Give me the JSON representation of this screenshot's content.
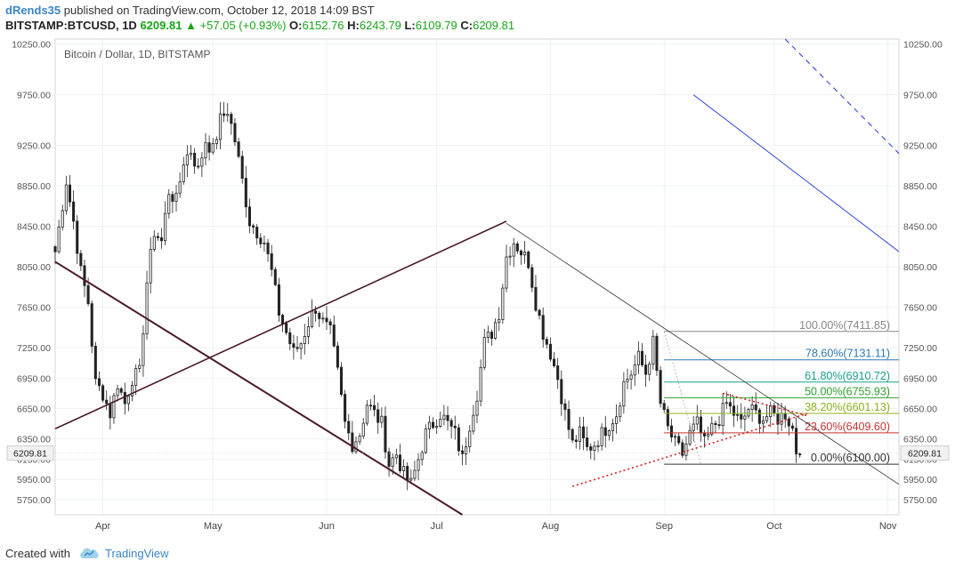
{
  "header": {
    "author": "dRends35",
    "published_text": " published on TradingView.com, October 12, 2018 14:09 BST",
    "symbol": "BITSTAMP:BTCUSD, 1D",
    "price": "6209.81",
    "change": "+57.05 (+0.93%)",
    "o_label": "O:",
    "o_value": "6152.76",
    "h_label": "H:",
    "h_value": "6243.79",
    "l_label": "L:",
    "l_value": "6109.79",
    "c_label": "C:",
    "c_value": "6209.81"
  },
  "footer": {
    "created_with": "Created with",
    "brand": "TradingView"
  },
  "colors": {
    "up": "#19a519",
    "accent": "#3a84c4",
    "trend": "#4a1a2a",
    "fib_red": "#c83232",
    "channel": "#1f35d6"
  },
  "chart_data": {
    "type": "candlestick",
    "title": "Bitcoin / Dollar, 1D, BITSTAMP",
    "ylim": [
      5600,
      10300
    ],
    "xlim": [
      -5,
      225
    ],
    "y_ticks": [
      "10250.00",
      "9750.00",
      "9250.00",
      "8850.00",
      "8450.00",
      "8050.00",
      "7650.00",
      "7250.00",
      "6950.00",
      "6650.00",
      "6350.00",
      "6150.00",
      "5950.00",
      "5750.00"
    ],
    "x_ticks": [
      {
        "label": "Apr",
        "x": 8
      },
      {
        "label": "May",
        "x": 38
      },
      {
        "label": "Jun",
        "x": 69
      },
      {
        "label": "Jul",
        "x": 99
      },
      {
        "label": "Aug",
        "x": 130
      },
      {
        "label": "Sep",
        "x": 161
      },
      {
        "label": "Oct",
        "x": 191
      },
      {
        "label": "Nov",
        "x": 222
      }
    ],
    "last_price": {
      "label": "6209.81",
      "value": 6209.81
    },
    "anchors": [
      [
        -5,
        8200
      ],
      [
        -2,
        8900
      ],
      [
        0,
        8500
      ],
      [
        2,
        8000
      ],
      [
        4,
        7700
      ],
      [
        6,
        6900
      ],
      [
        8,
        6800
      ],
      [
        10,
        6600
      ],
      [
        12,
        6900
      ],
      [
        14,
        6700
      ],
      [
        16,
        6950
      ],
      [
        18,
        7000
      ],
      [
        20,
        7900
      ],
      [
        22,
        8400
      ],
      [
        24,
        8300
      ],
      [
        26,
        8800
      ],
      [
        28,
        8700
      ],
      [
        30,
        9100
      ],
      [
        32,
        9200
      ],
      [
        34,
        9000
      ],
      [
        36,
        9300
      ],
      [
        38,
        9200
      ],
      [
        40,
        9500
      ],
      [
        42,
        9600
      ],
      [
        44,
        9300
      ],
      [
        46,
        8900
      ],
      [
        48,
        8500
      ],
      [
        50,
        8400
      ],
      [
        52,
        8300
      ],
      [
        54,
        8000
      ],
      [
        56,
        7600
      ],
      [
        58,
        7400
      ],
      [
        60,
        7200
      ],
      [
        62,
        7300
      ],
      [
        64,
        7500
      ],
      [
        66,
        7650
      ],
      [
        68,
        7500
      ],
      [
        70,
        7400
      ],
      [
        72,
        7000
      ],
      [
        74,
        6500
      ],
      [
        76,
        6300
      ],
      [
        78,
        6400
      ],
      [
        80,
        6700
      ],
      [
        82,
        6600
      ],
      [
        84,
        6500
      ],
      [
        86,
        6100
      ],
      [
        88,
        6200
      ],
      [
        90,
        6000
      ],
      [
        92,
        5900
      ],
      [
        94,
        6150
      ],
      [
        96,
        6400
      ],
      [
        98,
        6500
      ],
      [
        100,
        6600
      ],
      [
        102,
        6500
      ],
      [
        104,
        6400
      ],
      [
        106,
        6150
      ],
      [
        108,
        6500
      ],
      [
        110,
        6800
      ],
      [
        112,
        7300
      ],
      [
        114,
        7400
      ],
      [
        116,
        7600
      ],
      [
        118,
        8150
      ],
      [
        120,
        8300
      ],
      [
        122,
        8200
      ],
      [
        124,
        8100
      ],
      [
        126,
        7700
      ],
      [
        128,
        7400
      ],
      [
        130,
        7200
      ],
      [
        132,
        6950
      ],
      [
        134,
        6600
      ],
      [
        136,
        6300
      ],
      [
        138,
        6400
      ],
      [
        140,
        6250
      ],
      [
        142,
        6300
      ],
      [
        144,
        6400
      ],
      [
        146,
        6500
      ],
      [
        148,
        6600
      ],
      [
        150,
        6900
      ],
      [
        152,
        7000
      ],
      [
        154,
        7150
      ],
      [
        156,
        7000
      ],
      [
        158,
        7300
      ],
      [
        160,
        6700
      ],
      [
        162,
        6450
      ],
      [
        164,
        6300
      ],
      [
        166,
        6200
      ],
      [
        168,
        6400
      ],
      [
        170,
        6500
      ],
      [
        172,
        6300
      ],
      [
        174,
        6450
      ],
      [
        176,
        6550
      ],
      [
        178,
        6700
      ],
      [
        180,
        6600
      ],
      [
        182,
        6500
      ],
      [
        184,
        6650
      ],
      [
        186,
        6600
      ],
      [
        188,
        6550
      ],
      [
        190,
        6600
      ],
      [
        192,
        6550
      ],
      [
        194,
        6600
      ],
      [
        196,
        6450
      ],
      [
        197,
        6230
      ],
      [
        198,
        6200
      ]
    ],
    "fibonacci": {
      "start_x": 161,
      "end_x": 225,
      "levels": [
        {
          "label": "100.00%(7411.85)",
          "value": 7411.85,
          "color": "#888888"
        },
        {
          "label": "78.60%(7131.11)",
          "value": 7131.11,
          "color": "#2b78b5"
        },
        {
          "label": "61.80%(6910.72)",
          "value": 6910.72,
          "color": "#1aa090"
        },
        {
          "label": "50.00%(6755.93)",
          "value": 6755.93,
          "color": "#2ea02e"
        },
        {
          "label": "38.20%(6601.13)",
          "value": 6601.13,
          "color": "#8cb41e"
        },
        {
          "label": "23.60%(6409.60)",
          "value": 6409.6,
          "color": "#c83232"
        },
        {
          "label": "0.00%(6100.00)",
          "value": 6100.0,
          "color": "#333333"
        }
      ]
    },
    "trendlines": [
      {
        "name": "down-trendline",
        "from": [
          -5,
          8100
        ],
        "to": [
          106,
          5600
        ],
        "color": "#4a1a2a",
        "width": 2
      },
      {
        "name": "up-trendline",
        "from": [
          -5,
          6450
        ],
        "to": [
          118,
          8500
        ],
        "color": "#4a1a2a",
        "width": 1.6
      },
      {
        "name": "resistance-line",
        "from": [
          118,
          8480
        ],
        "to": [
          225,
          5900
        ],
        "color": "#333333",
        "width": 0.8
      },
      {
        "name": "channel-line-solid",
        "from": [
          169,
          9750
        ],
        "to": [
          225,
          8200
        ],
        "color": "#1f35d6",
        "width": 0.9
      }
    ],
    "dashed_lines": [
      {
        "name": "channel-line-dashed",
        "from": [
          194,
          10300
        ],
        "to": [
          225,
          9170
        ],
        "color": "#1f35d6"
      },
      {
        "name": "triangle-lower",
        "from": [
          136,
          5880
        ],
        "to": [
          200,
          6600
        ],
        "color": "#d42020"
      },
      {
        "name": "triangle-upper",
        "from": [
          177,
          6800
        ],
        "to": [
          200,
          6580
        ],
        "color": "#d42020"
      }
    ]
  }
}
